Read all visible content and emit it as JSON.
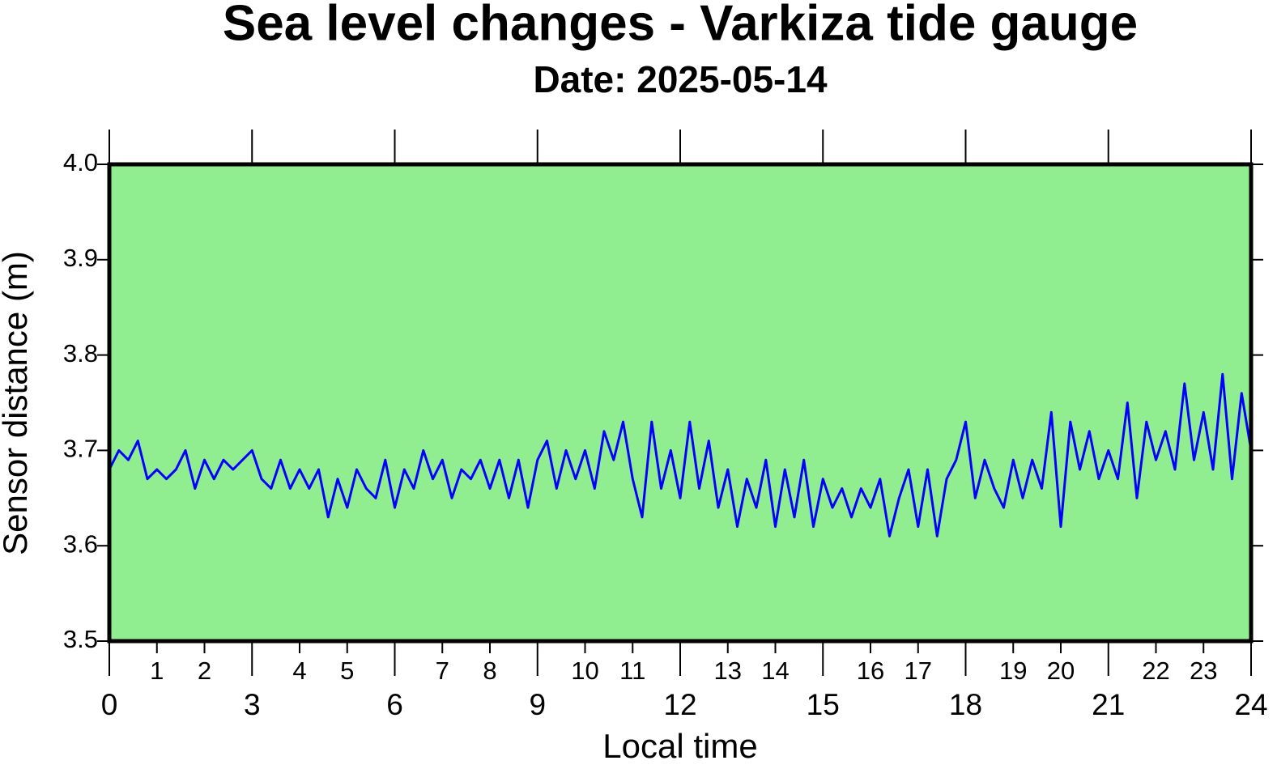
{
  "chart_data": {
    "type": "line",
    "title": "Sea level changes - Varkiza tide gauge",
    "subtitle": "Date: 2025-05-14",
    "xlabel": "Local time",
    "ylabel": "Sensor distance (m)",
    "xlim": [
      0,
      24
    ],
    "ylim": [
      3.5,
      4.0
    ],
    "xticks": [
      0,
      3,
      6,
      9,
      12,
      15,
      18,
      21,
      24
    ],
    "xticks_minor": [
      1,
      2,
      4,
      5,
      7,
      8,
      10,
      11,
      13,
      14,
      16,
      17,
      19,
      20,
      22,
      23
    ],
    "yticks": [
      3.5,
      3.6,
      3.7,
      3.8,
      3.9,
      {
        "value": 4.0,
        "label": "4.0"
      }
    ],
    "background": "#90ee90",
    "series": [
      {
        "color": "#0000ff",
        "x": [
          0,
          0.2,
          0.4,
          0.6,
          0.8,
          1,
          1.2,
          1.4,
          1.6,
          1.8,
          2,
          2.2,
          2.4,
          2.6,
          2.8,
          3,
          3.2,
          3.4,
          3.6,
          3.8,
          4,
          4.2,
          4.4,
          4.6,
          4.8,
          5,
          5.2,
          5.4,
          5.6,
          5.8,
          6,
          6.2,
          6.4,
          6.6,
          6.8,
          7,
          7.2,
          7.4,
          7.6,
          7.8,
          8,
          8.2,
          8.4,
          8.6,
          8.8,
          9,
          9.2,
          9.4,
          9.6,
          9.8,
          10,
          10.2,
          10.4,
          10.6,
          10.8,
          11,
          11.2,
          11.4,
          11.6,
          11.8,
          12,
          12.2,
          12.4,
          12.6,
          12.8,
          13,
          13.2,
          13.4,
          13.6,
          13.8,
          14,
          14.2,
          14.4,
          14.6,
          14.8,
          15,
          15.2,
          15.4,
          15.6,
          15.8,
          16,
          16.2,
          16.4,
          16.6,
          16.8,
          17,
          17.2,
          17.4,
          17.6,
          17.8,
          18,
          18.2,
          18.4,
          18.6,
          18.8,
          19,
          19.2,
          19.4,
          19.6,
          19.8,
          20,
          20.2,
          20.4,
          20.6,
          20.8,
          21,
          21.2,
          21.4,
          21.6,
          21.8,
          22,
          22.2,
          22.4,
          22.6,
          22.8,
          23,
          23.2,
          23.4,
          23.6,
          23.8,
          24
        ],
        "values": [
          3.68,
          3.7,
          3.69,
          3.71,
          3.67,
          3.68,
          3.67,
          3.68,
          3.7,
          3.66,
          3.69,
          3.67,
          3.69,
          3.68,
          3.69,
          3.7,
          3.67,
          3.66,
          3.69,
          3.66,
          3.68,
          3.66,
          3.68,
          3.63,
          3.67,
          3.64,
          3.68,
          3.66,
          3.65,
          3.69,
          3.64,
          3.68,
          3.66,
          3.7,
          3.67,
          3.69,
          3.65,
          3.68,
          3.67,
          3.69,
          3.66,
          3.69,
          3.65,
          3.69,
          3.64,
          3.69,
          3.71,
          3.66,
          3.7,
          3.67,
          3.7,
          3.66,
          3.72,
          3.69,
          3.73,
          3.67,
          3.63,
          3.73,
          3.66,
          3.7,
          3.65,
          3.73,
          3.66,
          3.71,
          3.64,
          3.68,
          3.62,
          3.67,
          3.64,
          3.69,
          3.62,
          3.68,
          3.63,
          3.69,
          3.62,
          3.67,
          3.64,
          3.66,
          3.63,
          3.66,
          3.64,
          3.67,
          3.61,
          3.65,
          3.68,
          3.62,
          3.68,
          3.61,
          3.67,
          3.69,
          3.73,
          3.65,
          3.69,
          3.66,
          3.64,
          3.69,
          3.65,
          3.69,
          3.66,
          3.74,
          3.62,
          3.73,
          3.68,
          3.72,
          3.67,
          3.7,
          3.67,
          3.75,
          3.65,
          3.73,
          3.69,
          3.72,
          3.68,
          3.77,
          3.69,
          3.74,
          3.68,
          3.78,
          3.67,
          3.76,
          3.7
        ]
      }
    ]
  }
}
